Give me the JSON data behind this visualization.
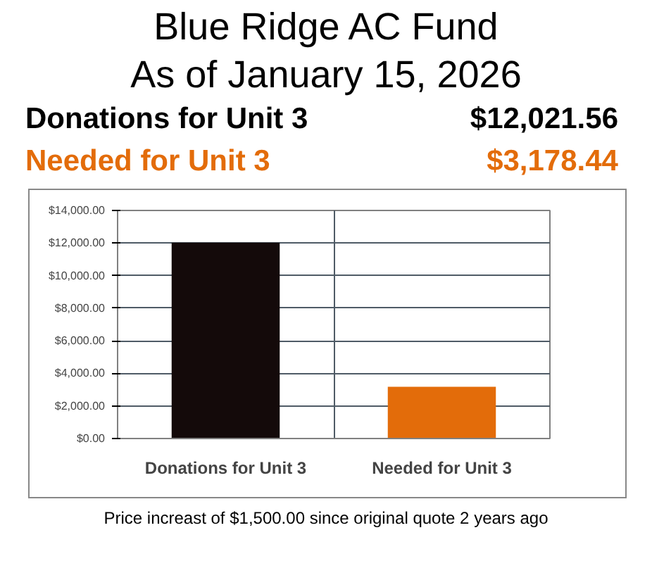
{
  "chart_data": {
    "type": "bar",
    "title": "Blue Ridge AC Fund",
    "subtitle": "As of January 15, 2026",
    "categories": [
      "Donations for Unit 3",
      "Needed for Unit 3"
    ],
    "values": [
      12021.56,
      3178.44
    ],
    "colors": [
      "#140a0a",
      "#e36c0a"
    ],
    "ylim": [
      0,
      14000
    ],
    "yticks": [
      {
        "value": 0,
        "label": "$0.00"
      },
      {
        "value": 2000,
        "label": "$2,000.00"
      },
      {
        "value": 4000,
        "label": "$4,000.00"
      },
      {
        "value": 6000,
        "label": "$6,000.00"
      },
      {
        "value": 8000,
        "label": "$8,000.00"
      },
      {
        "value": 10000,
        "label": "$10,000.00"
      },
      {
        "value": 12000,
        "label": "$12,000.00"
      },
      {
        "value": 14000,
        "label": "$14,000.00"
      }
    ],
    "grid": true,
    "annotations": [
      "Donations for Unit 3",
      "$12,021.56",
      "Needed for Unit 3",
      "$3,178.44",
      "Price increast of $1,500.00 since original quote 2 years ago"
    ]
  }
}
